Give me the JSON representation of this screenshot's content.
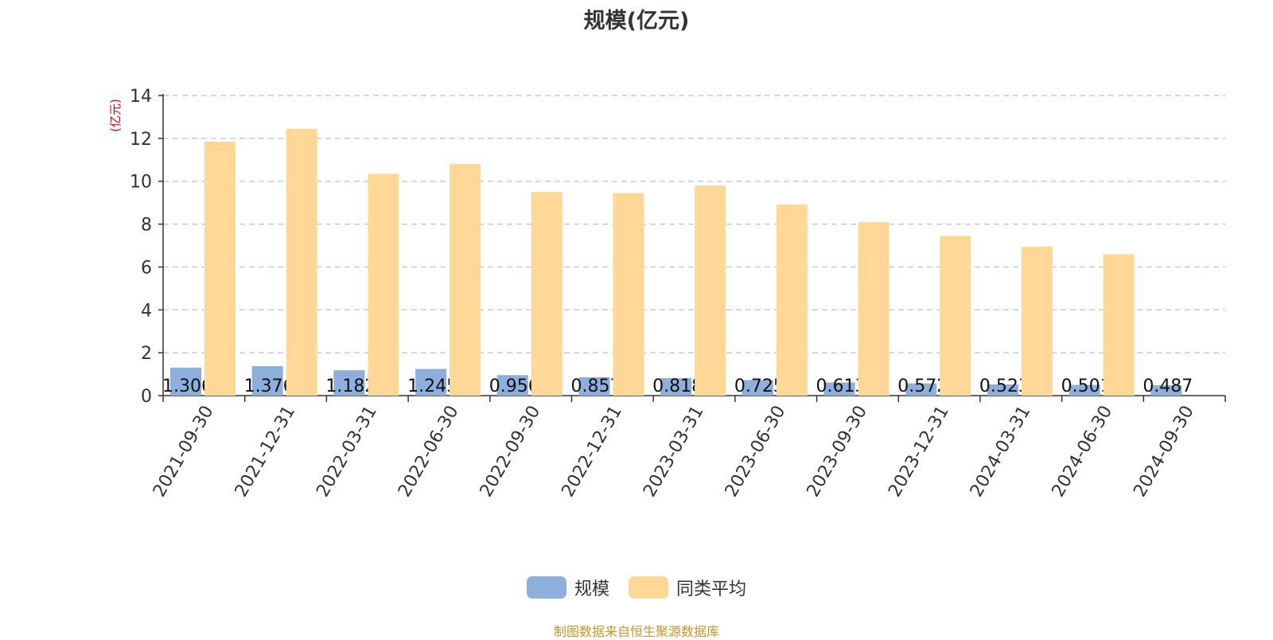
{
  "colors": {
    "series_a": "#8eaedb",
    "series_b": "#ffd898",
    "unit": "#e8000b",
    "axis": "#333333",
    "grid": "#cccccc",
    "source": "#c8962a"
  },
  "chart_data": {
    "type": "bar",
    "title": "规模(亿元)",
    "ylabel": "(亿元)",
    "xlabel": "",
    "ylim": [
      0,
      14
    ],
    "yticks": [
      0,
      2,
      4,
      6,
      8,
      10,
      12,
      14
    ],
    "grid": true,
    "legend_position": "bottom",
    "categories": [
      "2021-09-30",
      "2021-12-31",
      "2022-03-31",
      "2022-06-30",
      "2022-09-30",
      "2022-12-31",
      "2023-03-31",
      "2023-06-30",
      "2023-09-30",
      "2023-12-31",
      "2024-03-31",
      "2024-06-30",
      "2024-09-30"
    ],
    "series": [
      {
        "name": "规模",
        "values": [
          1.306,
          1.376,
          1.182,
          1.245,
          0.956,
          0.857,
          0.818,
          0.725,
          0.613,
          0.572,
          0.523,
          0.501,
          0.487
        ],
        "labels": [
          "1.306",
          "1.376",
          "1.182",
          "1.245",
          "0.956",
          "0.857",
          "0.818",
          "0.725",
          "0.613",
          "0.572",
          "0.523",
          "0.501",
          "0.487"
        ]
      },
      {
        "name": "同类平均",
        "values": [
          11.85,
          12.45,
          10.35,
          10.8,
          9.5,
          9.45,
          9.8,
          8.92,
          8.1,
          7.45,
          6.95,
          6.6,
          null
        ]
      }
    ]
  },
  "source": "制图数据来自恒生聚源数据库"
}
